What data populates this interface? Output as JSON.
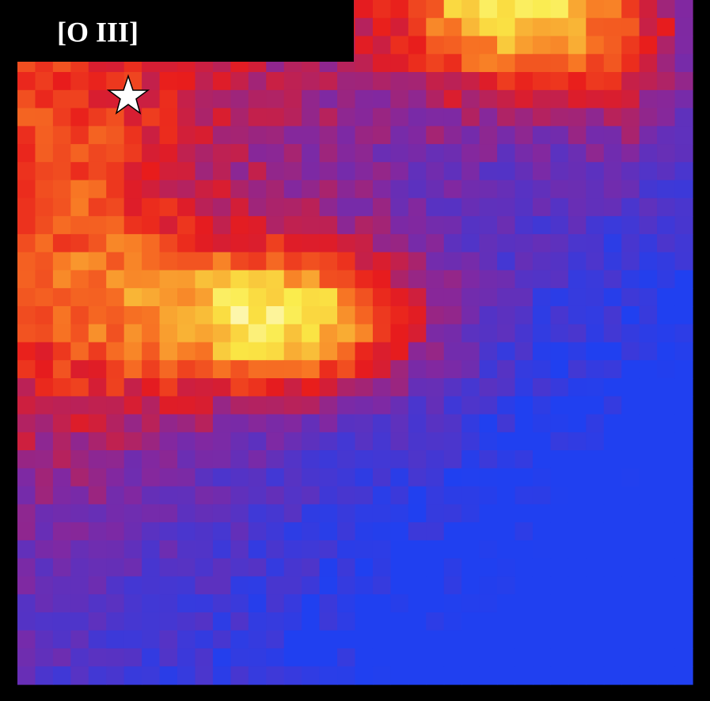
{
  "label": "[O III]"
}
